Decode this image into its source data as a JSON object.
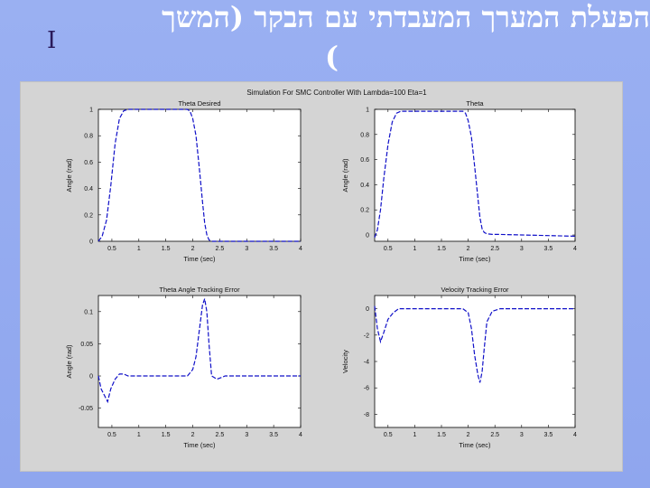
{
  "slide": {
    "title_line1": "הפעלת המערך המעבדתי עם הבקר (המשך",
    "title_line2": ")",
    "page_mark": "I"
  },
  "colors": {
    "background": "#94abf0",
    "series": "#1010c8",
    "panel": "#d4d4d4"
  },
  "figure": {
    "suptitle": "Simulation For SMC Controller With Lambda=100 Eta=1"
  },
  "chart_data": [
    {
      "type": "line",
      "title": "Theta Desired",
      "xlabel": "Time (sec)",
      "ylabel": "Angle (rad)",
      "xlim": [
        0.25,
        4.0
      ],
      "ylim": [
        0,
        1
      ],
      "xticks": [
        0.5,
        1,
        1.5,
        2,
        2.5,
        3,
        3.5,
        4
      ],
      "xticklabels": [
        "0.5",
        "1",
        "1.5",
        "2",
        "2.5",
        "3",
        "3.5",
        "4"
      ],
      "yticks": [
        0,
        0.2,
        0.4,
        0.6,
        0.8,
        1
      ],
      "yticklabels": [
        "0",
        "0.2",
        "0.4",
        "0.6",
        "0.8",
        "1"
      ],
      "grid": false,
      "series": [
        {
          "x": [
            0.25,
            0.32,
            0.4,
            0.48,
            0.56,
            0.64,
            0.72,
            0.8,
            0.9,
            1.0,
            1.5,
            1.9,
            1.95,
            2.0,
            2.06,
            2.12,
            2.18,
            2.22,
            2.26,
            2.3,
            2.35,
            2.42,
            2.6,
            3.0,
            3.5,
            4.0
          ],
          "y": [
            0,
            0.04,
            0.16,
            0.42,
            0.74,
            0.93,
            0.99,
            1,
            1,
            1,
            1,
            1,
            0.985,
            0.93,
            0.8,
            0.56,
            0.3,
            0.14,
            0.05,
            0.01,
            0,
            0,
            0,
            0,
            0,
            0
          ]
        }
      ]
    },
    {
      "type": "line",
      "title": "Theta",
      "xlabel": "Time (sec)",
      "ylabel": "Angle (rad)",
      "xlim": [
        0.25,
        4.0
      ],
      "ylim": [
        -0.05,
        1
      ],
      "xticks": [
        0.5,
        1,
        1.5,
        2,
        2.5,
        3,
        3.5,
        4
      ],
      "xticklabels": [
        "0.5",
        "1",
        "1.5",
        "2",
        "2.5",
        "3",
        "3.5",
        "4"
      ],
      "yticks": [
        0,
        0.2,
        0.4,
        0.6,
        0.8,
        1
      ],
      "yticklabels": [
        "0",
        "0.2",
        "0.4",
        "0.6",
        "0.8",
        "1"
      ],
      "grid": false,
      "series": [
        {
          "x": [
            0.25,
            0.3,
            0.36,
            0.42,
            0.5,
            0.58,
            0.66,
            0.74,
            0.82,
            0.9,
            1.0,
            1.5,
            1.9,
            1.95,
            2.0,
            2.06,
            2.12,
            2.18,
            2.22,
            2.26,
            2.3,
            2.35,
            2.45,
            2.6,
            3.0,
            3.5,
            4.0
          ],
          "y": [
            -0.02,
            0.04,
            0.2,
            0.45,
            0.72,
            0.9,
            0.97,
            0.985,
            0.985,
            0.985,
            0.985,
            0.985,
            0.985,
            0.97,
            0.91,
            0.78,
            0.55,
            0.3,
            0.14,
            0.05,
            0.02,
            0.01,
            0.005,
            0.005,
            0,
            -0.005,
            -0.01
          ]
        }
      ]
    },
    {
      "type": "line",
      "title": "Theta Angle Tracking Error",
      "xlabel": "Time (sec)",
      "ylabel": "Angle (rad)",
      "xlim": [
        0.25,
        4.0
      ],
      "ylim": [
        -0.08,
        0.125
      ],
      "xticks": [
        0.5,
        1,
        1.5,
        2,
        2.5,
        3,
        3.5,
        4
      ],
      "xticklabels": [
        "0.5",
        "1",
        "1.5",
        "2",
        "2.5",
        "3",
        "3.5",
        "4"
      ],
      "yticks": [
        -0.05,
        0,
        0.05,
        0.1
      ],
      "yticklabels": [
        "-0.05",
        "0",
        "0.05",
        "0.1"
      ],
      "grid": false,
      "series": [
        {
          "x": [
            0.25,
            0.3,
            0.36,
            0.42,
            0.48,
            0.56,
            0.64,
            0.72,
            0.8,
            0.9,
            1.0,
            1.5,
            1.9,
            2.0,
            2.06,
            2.12,
            2.18,
            2.22,
            2.26,
            2.3,
            2.35,
            2.45,
            2.6,
            3.0,
            3.5,
            4.0
          ],
          "y": [
            0.0,
            -0.02,
            -0.03,
            -0.04,
            -0.02,
            -0.005,
            0.003,
            0.003,
            0.0,
            0.0,
            0.0,
            0.0,
            0.0,
            0.01,
            0.03,
            0.07,
            0.11,
            0.12,
            0.1,
            0.05,
            0.0,
            -0.005,
            0.0,
            0.0,
            0.0,
            0.0
          ]
        }
      ]
    },
    {
      "type": "line",
      "title": "Velocity Tracking Error",
      "xlabel": "Time (sec)",
      "ylabel": "Velocity",
      "xlim": [
        0.25,
        4.0
      ],
      "ylim": [
        -9,
        1
      ],
      "xticks": [
        0.5,
        1,
        1.5,
        2,
        2.5,
        3,
        3.5,
        4
      ],
      "xticklabels": [
        "0.5",
        "1",
        "1.5",
        "2",
        "2.5",
        "3",
        "3.5",
        "4"
      ],
      "yticks": [
        -8,
        -6,
        -4,
        -2,
        0
      ],
      "yticklabels": [
        "-8",
        "-6",
        "-4",
        "-2",
        "0"
      ],
      "grid": false,
      "series": [
        {
          "x": [
            0.25,
            0.3,
            0.36,
            0.42,
            0.5,
            0.6,
            0.7,
            0.8,
            1.0,
            1.5,
            1.9,
            2.0,
            2.06,
            2.12,
            2.18,
            2.22,
            2.26,
            2.3,
            2.35,
            2.45,
            2.6,
            3.0,
            3.5,
            4.0
          ],
          "y": [
            0.2,
            -1.5,
            -2.5,
            -1.8,
            -0.8,
            -0.3,
            0.0,
            0.0,
            0.0,
            0.0,
            0.0,
            -0.3,
            -1.5,
            -3.5,
            -5.0,
            -5.6,
            -4.8,
            -3.0,
            -1.0,
            -0.2,
            0.0,
            0.0,
            0.0,
            0.0
          ]
        }
      ]
    }
  ]
}
